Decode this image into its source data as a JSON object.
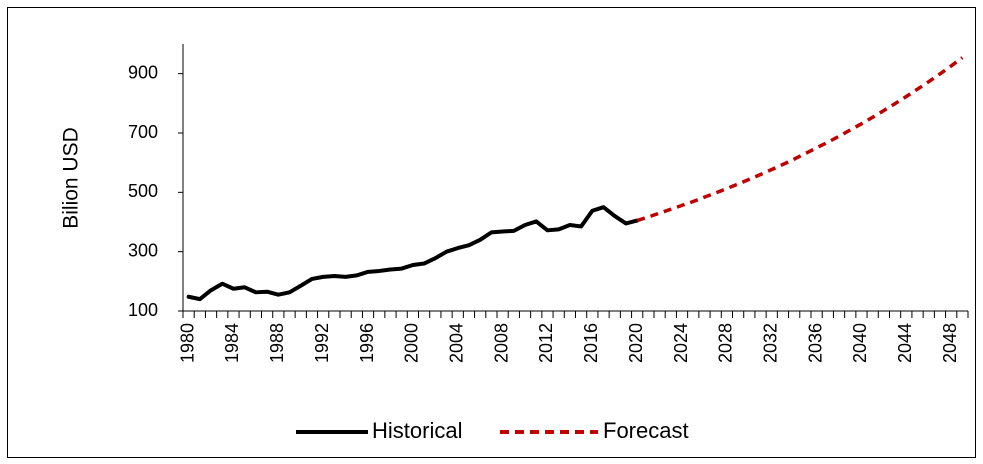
{
  "chart_data": {
    "type": "line",
    "y_label": "Bilion USD",
    "categories": [
      "1980",
      null,
      null,
      null,
      "1984",
      null,
      null,
      null,
      "1988",
      null,
      null,
      null,
      "1992",
      null,
      null,
      null,
      "1996",
      null,
      null,
      null,
      "2000",
      null,
      null,
      null,
      "2004",
      null,
      null,
      null,
      "2008",
      null,
      null,
      null,
      "2012",
      null,
      null,
      null,
      "2016",
      null,
      null,
      null,
      "2020",
      null,
      null,
      null,
      "2024",
      null,
      null,
      null,
      "2028",
      null,
      null,
      null,
      "2032",
      null,
      null,
      null,
      "2036",
      null,
      null,
      null,
      "2040",
      null,
      null,
      null,
      "2044",
      null,
      null,
      null,
      "2048",
      null
    ],
    "series": [
      {
        "name": "Historical",
        "color": "#000000",
        "dash": false,
        "values": [
          148,
          140,
          170,
          192,
          175,
          180,
          163,
          165,
          155,
          163,
          185,
          208,
          215,
          218,
          215,
          220,
          232,
          235,
          240,
          243,
          255,
          260,
          278,
          300,
          312,
          322,
          340,
          365,
          368,
          370,
          390,
          402,
          372,
          375,
          390,
          385,
          438,
          450,
          420,
          395,
          405,
          null,
          null,
          null,
          null,
          null,
          null,
          null,
          null,
          null,
          null,
          null,
          null,
          null,
          null,
          null,
          null,
          null,
          null,
          null,
          null,
          null,
          null,
          null,
          null,
          null,
          null,
          null,
          null,
          null
        ]
      },
      {
        "name": "Forecast",
        "color": "#c00000",
        "dash": true,
        "values": [
          null,
          null,
          null,
          null,
          null,
          null,
          null,
          null,
          null,
          null,
          null,
          null,
          null,
          null,
          null,
          null,
          null,
          null,
          null,
          null,
          null,
          null,
          null,
          null,
          null,
          null,
          null,
          null,
          null,
          null,
          null,
          null,
          null,
          null,
          null,
          null,
          null,
          null,
          null,
          null,
          405,
          417,
          430,
          443,
          456,
          469,
          484,
          498,
          513,
          528,
          544,
          560,
          577,
          594,
          612,
          631,
          650,
          669,
          689,
          710,
          731,
          753,
          776,
          799,
          823,
          848,
          873,
          899,
          926,
          954
        ]
      }
    ],
    "ylim": [
      100,
      1000
    ],
    "yticks": [
      100,
      300,
      500,
      700,
      900
    ],
    "grid": false,
    "legend": "bottom"
  }
}
